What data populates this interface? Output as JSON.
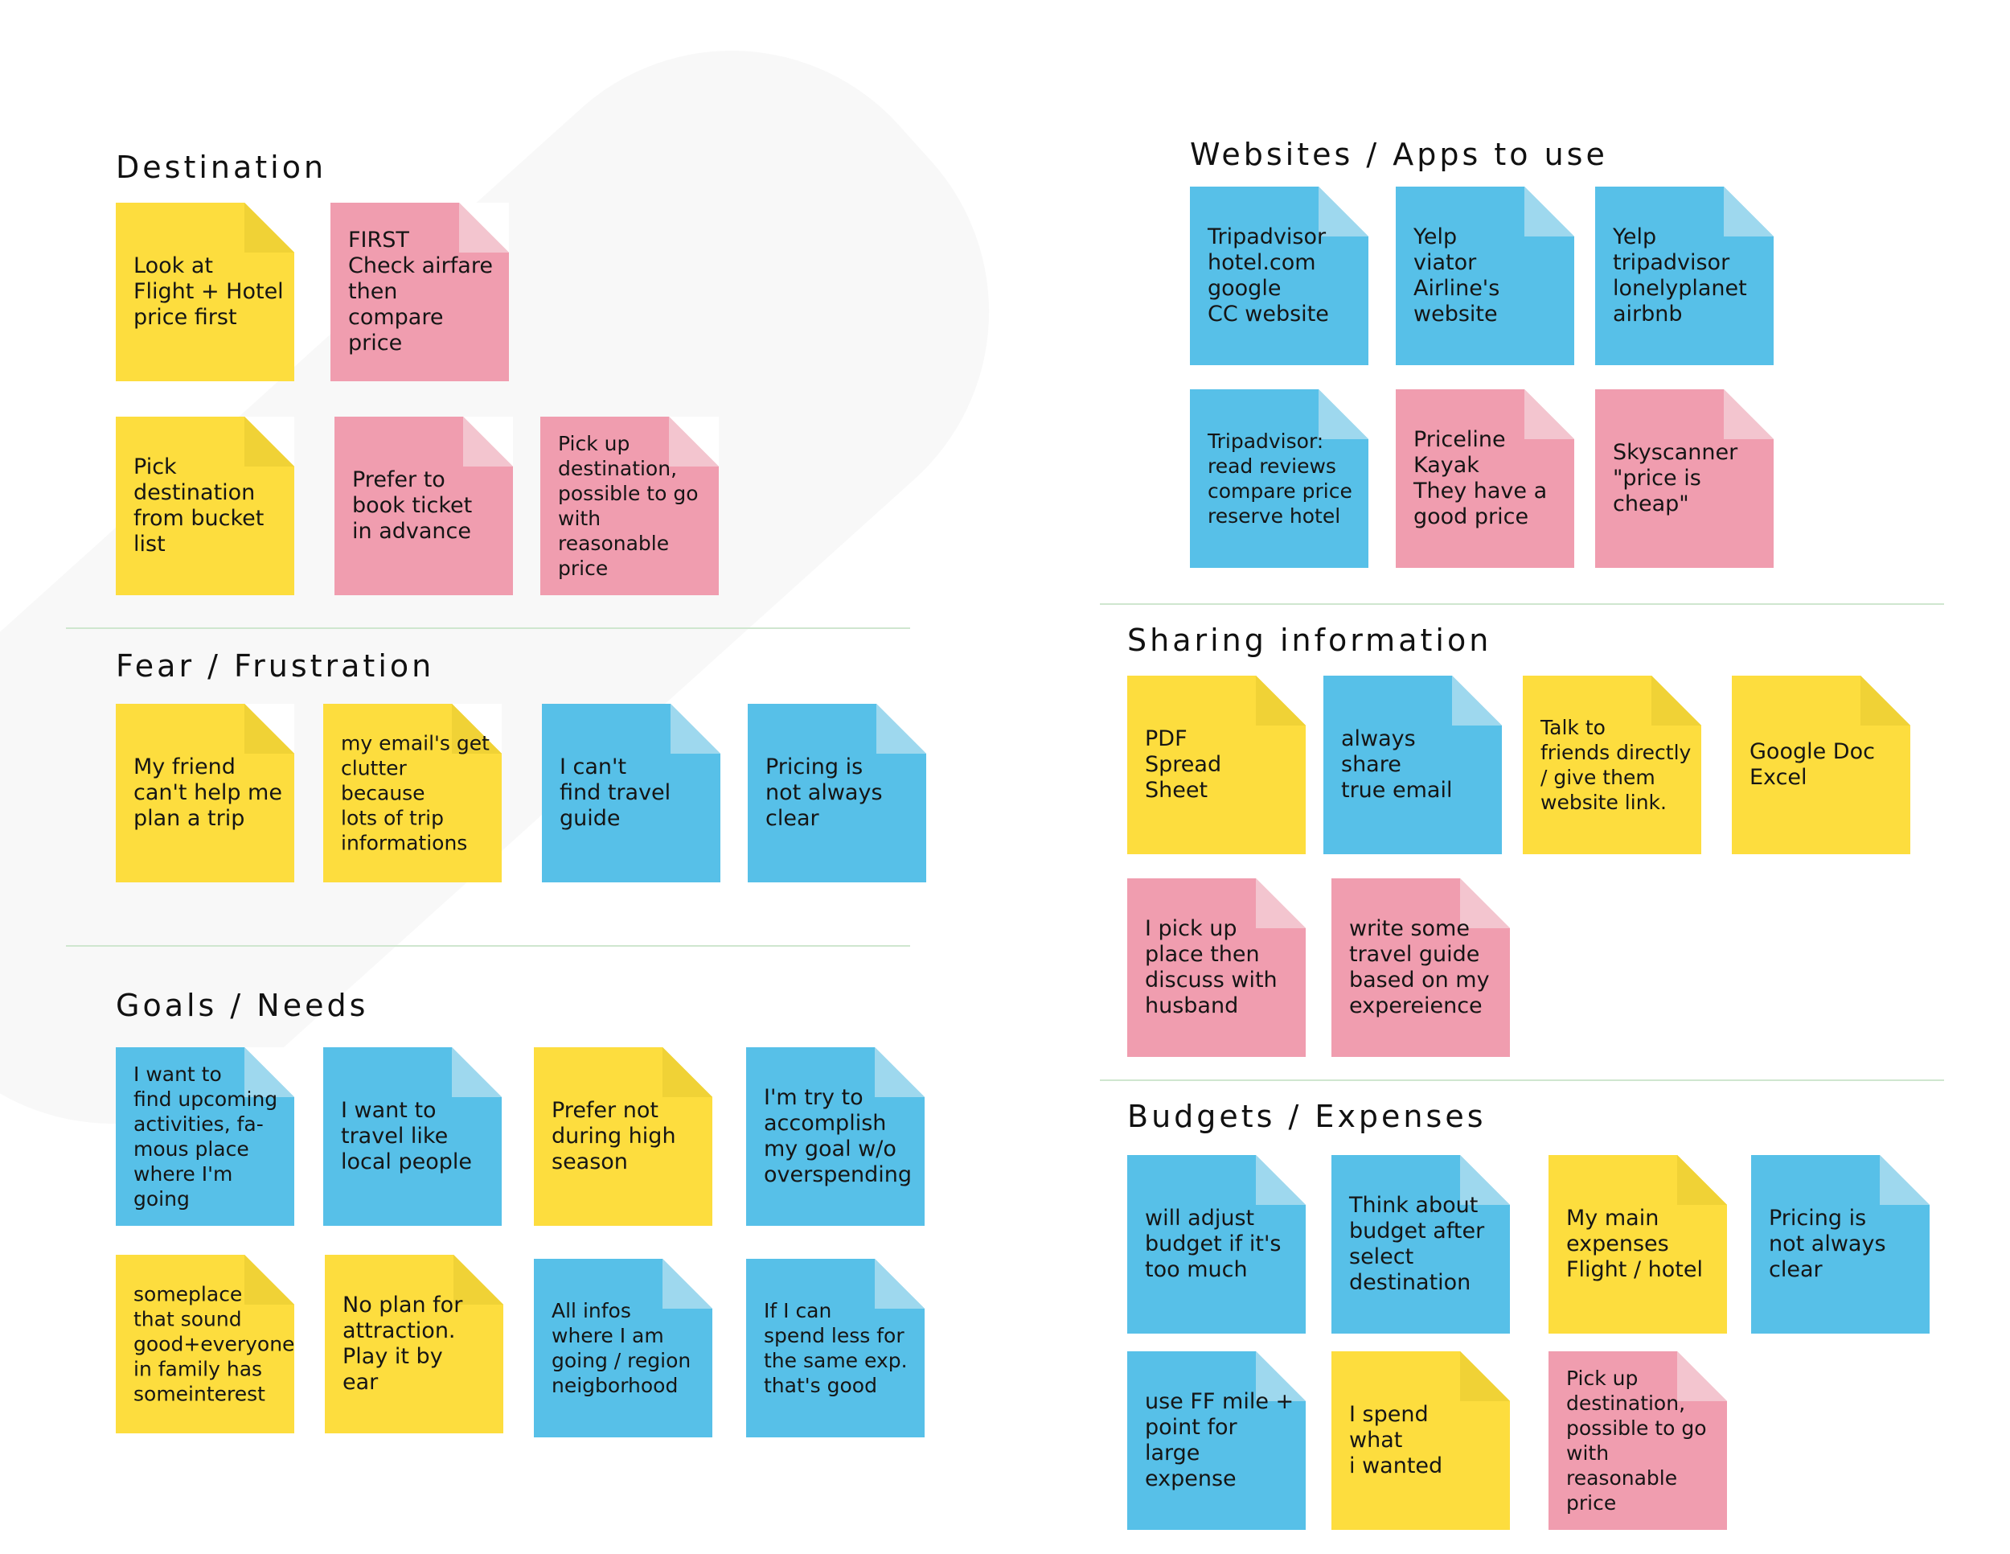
{
  "colors": {
    "yellow": "#fddd3e",
    "pink": "#f09daf",
    "blue": "#57c0e8",
    "divider": "#cfe6cf"
  },
  "sections": {
    "destination": {
      "title": "Destination",
      "notes": [
        {
          "color": "yellow",
          "text": "Look at\nFlight + Hotel\nprice first"
        },
        {
          "color": "pink",
          "text": "FIRST\nCheck airfare\nthen compare\nprice"
        },
        {
          "color": "yellow",
          "text": "Pick\ndestination\nfrom bucket\nlist"
        },
        {
          "color": "pink",
          "text": "Prefer to\nbook ticket\nin advance"
        },
        {
          "color": "pink",
          "text": "Pick up\ndestination,\npossible to go\nwith reasonable\nprice"
        }
      ]
    },
    "fear": {
      "title": "Fear / Frustration",
      "notes": [
        {
          "color": "yellow",
          "text": "My friend\ncan't help me\nplan a trip"
        },
        {
          "color": "yellow",
          "text": "my email's get\nclutter because\nlots of trip\ninformations"
        },
        {
          "color": "blue",
          "text": "I can't\nfind travel\nguide"
        },
        {
          "color": "blue",
          "text": "Pricing is\nnot always\nclear"
        }
      ]
    },
    "goals": {
      "title": "Goals / Needs",
      "notes": [
        {
          "color": "blue",
          "text": "I want to\nfind upcoming\nactivities, fa-\nmous place\nwhere I'm going"
        },
        {
          "color": "blue",
          "text": "I want to\ntravel like\nlocal people"
        },
        {
          "color": "yellow",
          "text": "Prefer not\nduring high\nseason"
        },
        {
          "color": "blue",
          "text": "I'm try to\naccomplish\nmy goal w/o\noverspending"
        },
        {
          "color": "yellow",
          "text": "someplace\nthat sound\ngood+everyone\nin family has\nsomeinterest"
        },
        {
          "color": "yellow",
          "text": "No plan for\nattraction.\nPlay it by\near"
        },
        {
          "color": "blue",
          "text": "All infos\nwhere I am\ngoing / region\nneigborhood"
        },
        {
          "color": "blue",
          "text": "If I can\nspend less for\nthe same exp.\nthat's good"
        }
      ]
    },
    "websites": {
      "title": "Websites / Apps to use",
      "notes": [
        {
          "color": "blue",
          "text": "Tripadvisor\nhotel.com\ngoogle\nCC website"
        },
        {
          "color": "blue",
          "text": "Yelp\nviator\nAirline's\nwebsite"
        },
        {
          "color": "blue",
          "text": "Yelp\ntripadvisor\nlonelyplanet\nairbnb"
        },
        {
          "color": "blue",
          "text": "Tripadvisor:\nread reviews\ncompare price\nreserve hotel"
        },
        {
          "color": "pink",
          "text": "Priceline\nKayak\nThey have a\ngood price"
        },
        {
          "color": "pink",
          "text": "Skyscanner\n\"price is\ncheap\""
        }
      ]
    },
    "sharing": {
      "title": "Sharing information",
      "notes": [
        {
          "color": "yellow",
          "text": "PDF\nSpread\nSheet"
        },
        {
          "color": "blue",
          "text": "always\nshare\ntrue email"
        },
        {
          "color": "yellow",
          "text": "Talk to\nfriends directly\n/ give them\nwebsite link."
        },
        {
          "color": "yellow",
          "text": "Google Doc\nExcel"
        },
        {
          "color": "pink",
          "text": "I pick up\nplace then\ndiscuss with\nhusband"
        },
        {
          "color": "pink",
          "text": "write some\ntravel guide\nbased on my\nexpereience"
        }
      ]
    },
    "budgets": {
      "title": "Budgets / Expenses",
      "notes": [
        {
          "color": "blue",
          "text": "will adjust\nbudget if it's\ntoo much"
        },
        {
          "color": "blue",
          "text": "Think about\nbudget after\nselect\ndestination"
        },
        {
          "color": "yellow",
          "text": "My main\nexpenses\nFlight / hotel"
        },
        {
          "color": "blue",
          "text": "Pricing is\nnot always\nclear"
        },
        {
          "color": "blue",
          "text": "use FF mile +\npoint for\nlarge expense"
        },
        {
          "color": "yellow",
          "text": "I spend\nwhat\ni wanted"
        },
        {
          "color": "pink",
          "text": "Pick up\ndestination,\npossible to go\nwith reasonable\nprice"
        }
      ]
    }
  }
}
